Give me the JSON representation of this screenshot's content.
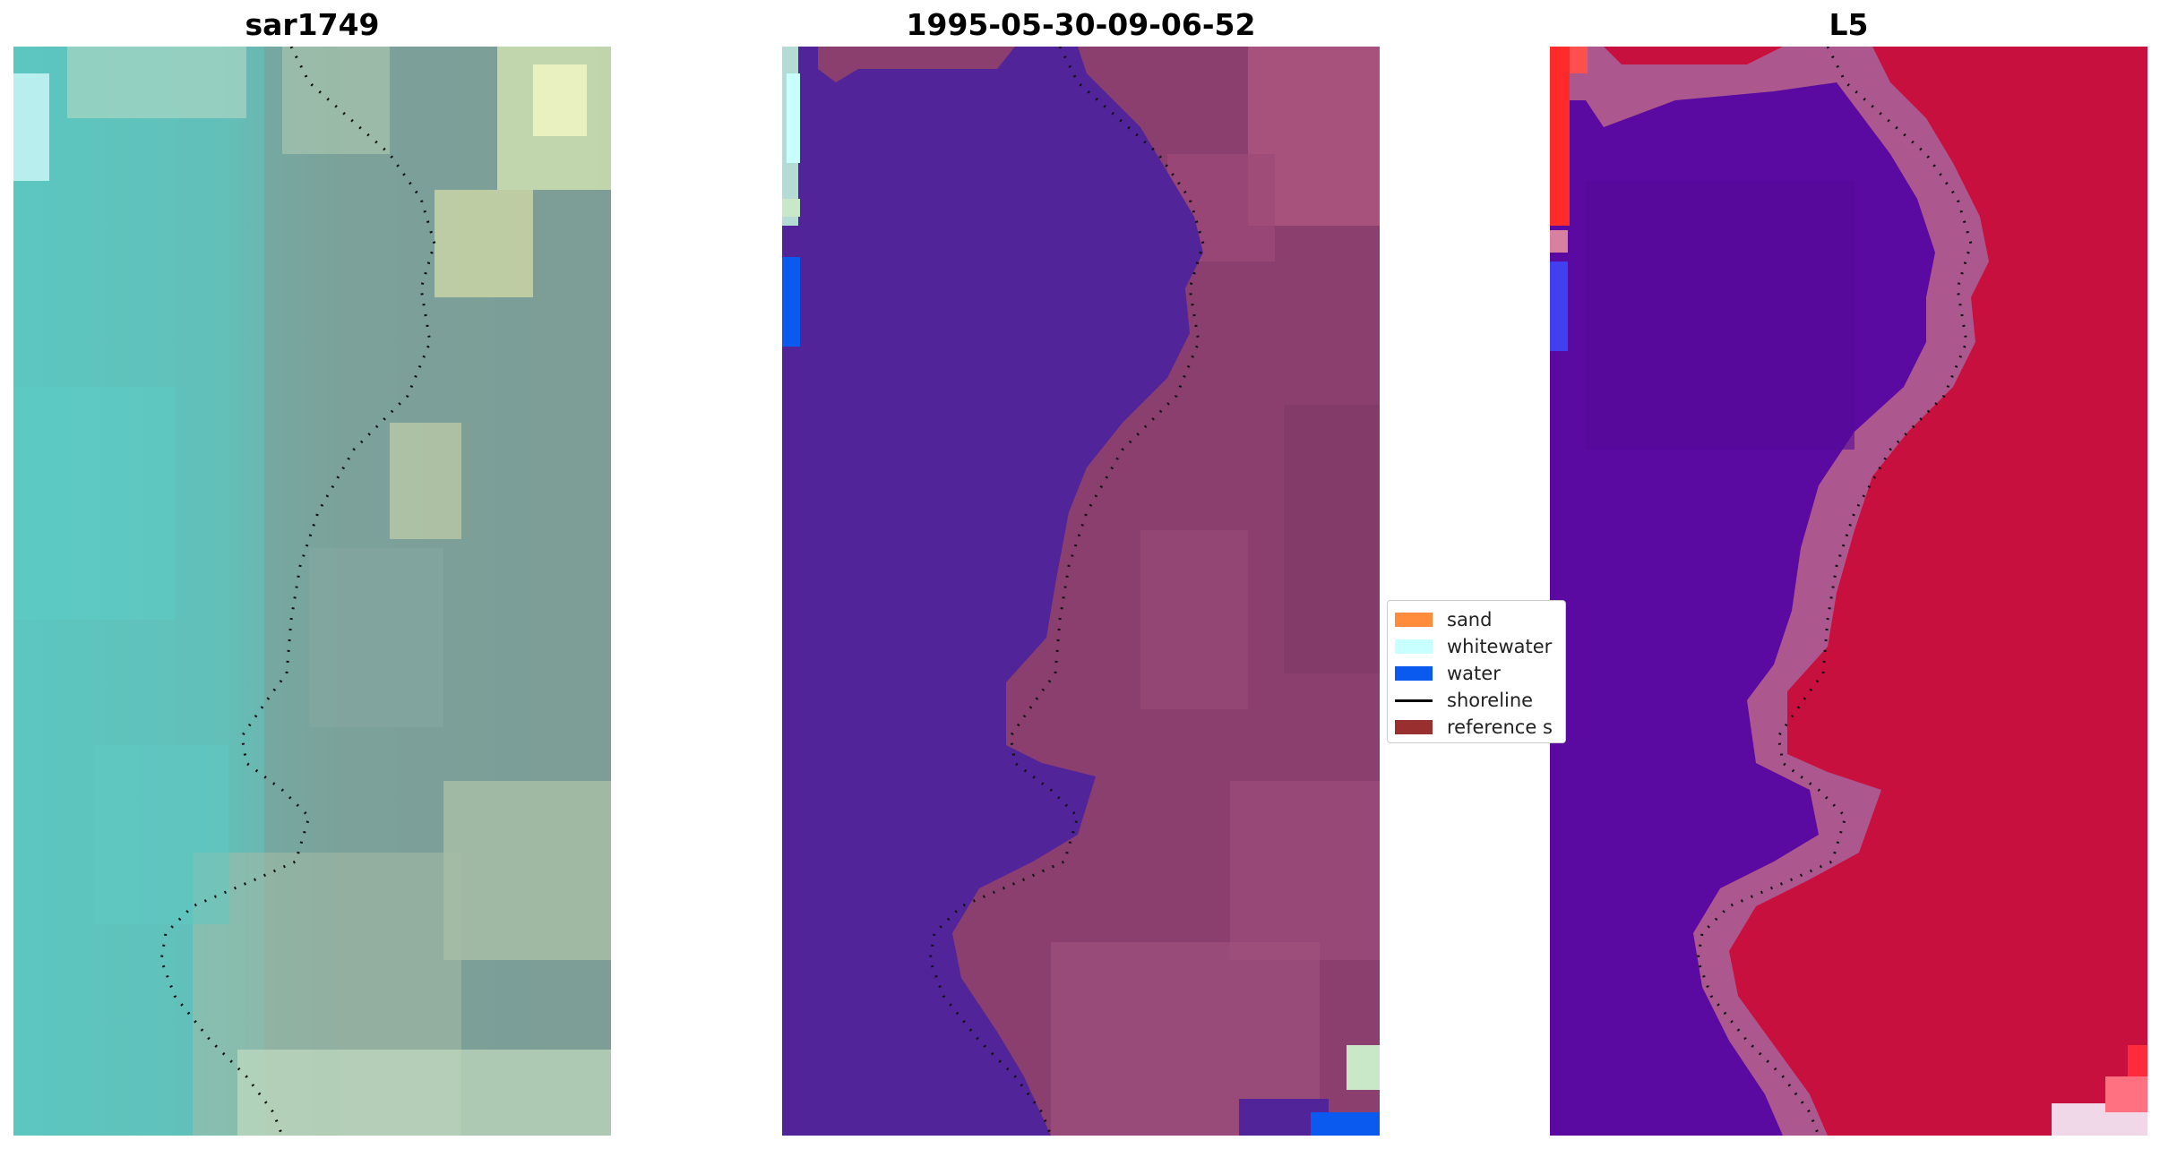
{
  "panels": [
    {
      "title": "sar1749"
    },
    {
      "title": "1995-05-30-09-06-52"
    },
    {
      "title": "L5"
    }
  ],
  "legend": {
    "items": [
      {
        "label": "sand",
        "color": "#ff8c3c"
      },
      {
        "label": "whitewater",
        "color": "#c8ffff"
      },
      {
        "label": "water",
        "color": "#0a5af0"
      },
      {
        "label": "shoreline",
        "color": "#000000"
      },
      {
        "label": "reference s",
        "color": "#992f2f"
      }
    ]
  },
  "colors": {
    "rgb_water": "#5fc3bd",
    "rgb_land": "#7a9a94",
    "classified_water": "#52249a",
    "classified_land": "#8a3f6f",
    "index_water": "#5a0aa0",
    "index_land": "#c8103e"
  }
}
